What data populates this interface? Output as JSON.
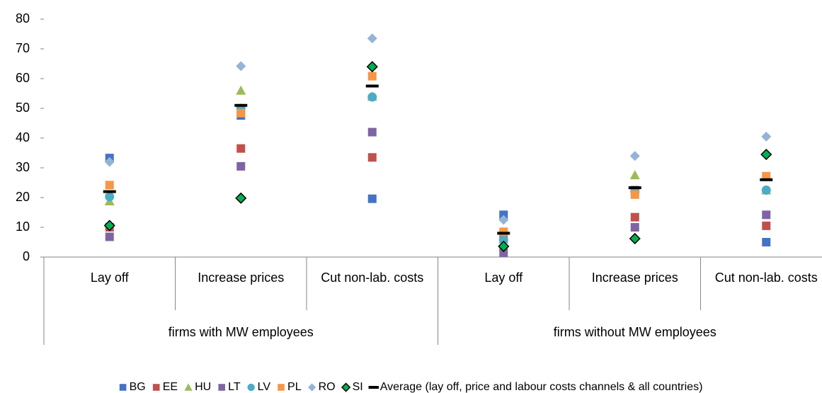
{
  "chart_data": {
    "type": "dot",
    "categories": [
      "Lay off",
      "Increase prices",
      "Cut non-lab. costs",
      "Lay off",
      "Increase prices",
      "Cut non-lab. costs"
    ],
    "groups": [
      "firms with MW employees",
      "firms without MW employees"
    ],
    "ylim": [
      0,
      80
    ],
    "yticks": [
      0,
      10,
      20,
      30,
      40,
      50,
      60,
      70,
      80
    ],
    "grid": false,
    "legend": "bottom",
    "series": [
      {
        "name": "BG",
        "color": "#4472c4",
        "marker": "square",
        "values": [
          33.3,
          47.6,
          19.6,
          14.2,
          22.5,
          5.0
        ]
      },
      {
        "name": "EE",
        "color": "#c0504d",
        "marker": "square",
        "values": [
          10.0,
          36.5,
          33.5,
          7.5,
          13.4,
          10.5
        ]
      },
      {
        "name": "HU",
        "color": "#9bbb59",
        "marker": "triangle",
        "values": [
          18.8,
          56.0,
          54.0,
          6.0,
          27.6,
          22.5
        ]
      },
      {
        "name": "LT",
        "color": "#8064a2",
        "marker": "square",
        "values": [
          6.8,
          30.5,
          42.0,
          1.5,
          10.0,
          14.2
        ]
      },
      {
        "name": "LV",
        "color": "#4bacc6",
        "marker": "circle",
        "values": [
          20.3,
          50.0,
          53.8,
          5.8,
          22.0,
          22.5
        ]
      },
      {
        "name": "PL",
        "color": "#f79646",
        "marker": "square",
        "values": [
          24.2,
          48.4,
          60.8,
          8.5,
          21.0,
          27.2
        ]
      },
      {
        "name": "RO",
        "color": "#95b3d7",
        "marker": "diamond",
        "values": [
          32.0,
          64.2,
          73.5,
          12.5,
          34.0,
          40.5
        ]
      },
      {
        "name": "SI",
        "color": "#00b050",
        "marker": "diamond-outlined",
        "values": [
          10.6,
          19.8,
          64.0,
          3.6,
          6.2,
          34.5
        ]
      },
      {
        "name": "Average (lay off, price and labour costs channels & all countries)",
        "color": "#000000",
        "marker": "dash",
        "values": [
          22.0,
          51.0,
          57.5,
          8.0,
          23.3,
          26.0
        ]
      }
    ]
  }
}
